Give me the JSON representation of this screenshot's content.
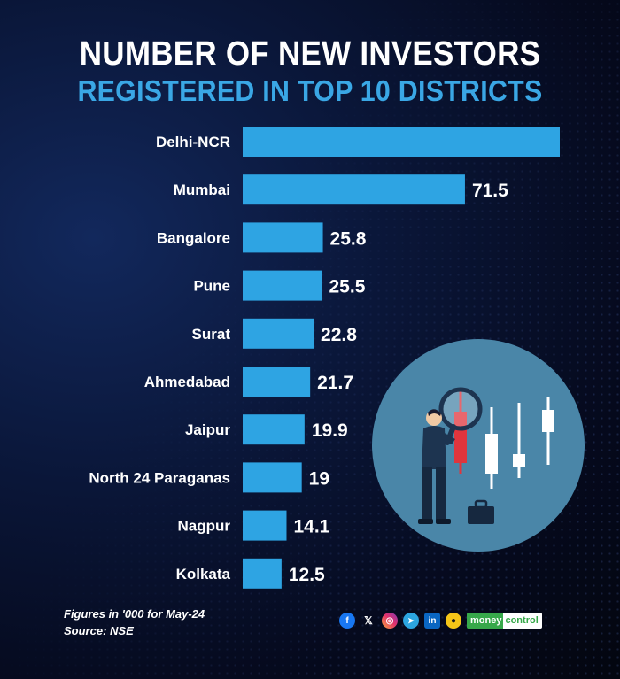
{
  "title_line1": "NUMBER OF NEW INVESTORS",
  "title_line2": "REGISTERED IN TOP 10 DISTRICTS",
  "chart_data": {
    "type": "bar",
    "orientation": "horizontal",
    "categories": [
      "Delhi-NCR",
      "Mumbai",
      "Bangalore",
      "Pune",
      "Surat",
      "Ahmedabad",
      "Jaipur",
      "North 24 Paraganas",
      "Nagpur",
      "Kolkata"
    ],
    "values": [
      102,
      71.5,
      25.8,
      25.5,
      22.8,
      21.7,
      19.9,
      19,
      14.1,
      12.5
    ],
    "value_labels": [
      "",
      "71.5",
      "25.8",
      "25.5",
      "22.8",
      "21.7",
      "19.9",
      "19",
      "14.1",
      "12.5"
    ],
    "xlim": [
      0,
      102
    ],
    "grid": false,
    "bar_color": "#2ea4e3"
  },
  "footnote_line1": "Figures in '000 for May-24",
  "footnote_line2": "Source: NSE",
  "social": {
    "icons": [
      "facebook-icon",
      "x-icon",
      "instagram-icon",
      "telegram-icon",
      "linkedin-icon",
      "koo-icon"
    ],
    "brand_part1": "money",
    "brand_part2": "control",
    "brand_color": "#37a84a"
  },
  "illustration": {
    "circle_color": "#4a86a8",
    "candle_red": "#e0353d",
    "candle_white": "#ffffff"
  }
}
